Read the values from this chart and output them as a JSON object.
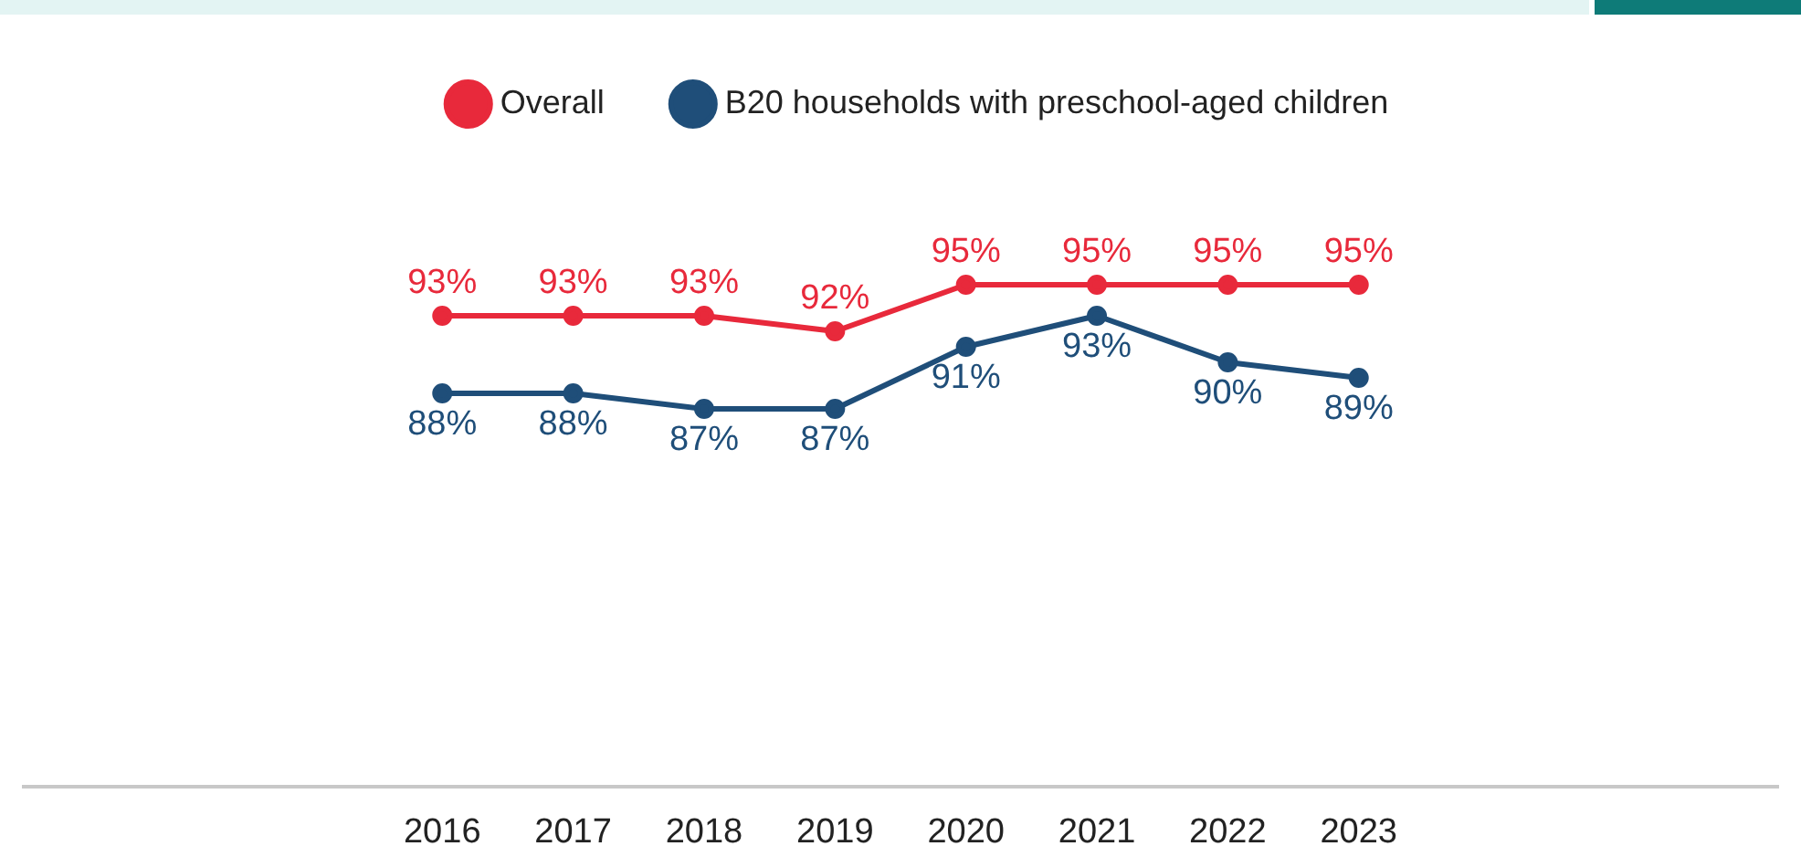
{
  "chart_data": {
    "type": "line",
    "categories": [
      "2016",
      "2017",
      "2018",
      "2019",
      "2020",
      "2021",
      "2022",
      "2023"
    ],
    "series": [
      {
        "name": "Overall",
        "color": "#e8293b",
        "values": [
          93,
          93,
          93,
          92,
          95,
          95,
          95,
          95
        ],
        "value_labels": [
          "93%",
          "93%",
          "93%",
          "92%",
          "95%",
          "95%",
          "95%",
          "95%"
        ]
      },
      {
        "name": "B20 households with preschool-aged children",
        "color": "#1f4e79",
        "values": [
          88,
          88,
          87,
          87,
          91,
          93,
          90,
          89
        ],
        "value_labels": [
          "88%",
          "88%",
          "87%",
          "87%",
          "91%",
          "93%",
          "90%",
          "89%"
        ]
      }
    ],
    "tick_labels": "x",
    "grid": false,
    "legend": "top",
    "marker": "circle",
    "line_style": "solid"
  }
}
